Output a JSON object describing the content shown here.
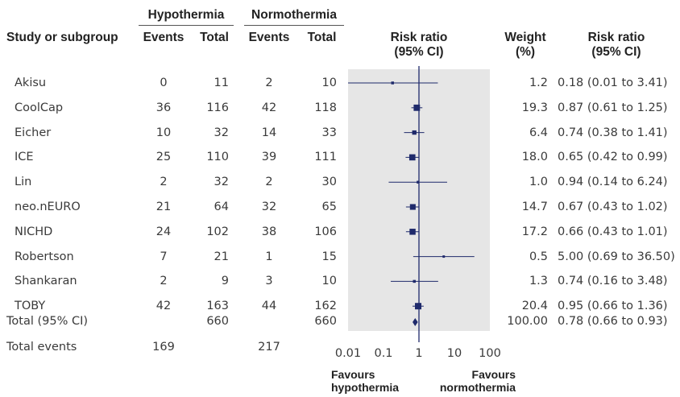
{
  "headers": {
    "group1": "Hypothermia",
    "group2": "Normothermia",
    "study": "Study or subgroup",
    "events1": "Events",
    "total1": "Total",
    "events2": "Events",
    "total2": "Total",
    "rr_plot_line1": "Risk ratio",
    "rr_plot_line2": "(95% CI)",
    "weight_line1": "Weight",
    "weight_line2": "(%)",
    "rr_text_line1": "Risk ratio",
    "rr_text_line2": "(95% CI)"
  },
  "rows": [
    {
      "study": "Akisu",
      "e1": "0",
      "t1": "11",
      "e2": "2",
      "t2": "10",
      "weight": "1.2",
      "ci_text": "0.18 (0.01 to 3.41)"
    },
    {
      "study": "CoolCap",
      "e1": "36",
      "t1": "116",
      "e2": "42",
      "t2": "118",
      "weight": "19.3",
      "ci_text": "0.87 (0.61 to 1.25)"
    },
    {
      "study": "Eicher",
      "e1": "10",
      "t1": "32",
      "e2": "14",
      "t2": "33",
      "weight": "6.4",
      "ci_text": "0.74 (0.38 to 1.41)"
    },
    {
      "study": "ICE",
      "e1": "25",
      "t1": "110",
      "e2": "39",
      "t2": "111",
      "weight": "18.0",
      "ci_text": "0.65 (0.42 to 0.99)"
    },
    {
      "study": "Lin",
      "e1": "2",
      "t1": "32",
      "e2": "2",
      "t2": "30",
      "weight": "1.0",
      "ci_text": "0.94 (0.14 to 6.24)"
    },
    {
      "study": "neo.nEURO",
      "e1": "21",
      "t1": "64",
      "e2": "32",
      "t2": "65",
      "weight": "14.7",
      "ci_text": "0.67 (0.43 to 1.02)"
    },
    {
      "study": "NICHD",
      "e1": "24",
      "t1": "102",
      "e2": "38",
      "t2": "106",
      "weight": "17.2",
      "ci_text": "0.66 (0.43 to 1.01)"
    },
    {
      "study": "Robertson",
      "e1": "7",
      "t1": "21",
      "e2": "1",
      "t2": "15",
      "weight": "0.5",
      "ci_text": "5.00 (0.69 to 36.50)"
    },
    {
      "study": "Shankaran",
      "e1": "2",
      "t1": "9",
      "e2": "3",
      "t2": "10",
      "weight": "1.3",
      "ci_text": "0.74 (0.16 to 3.48)"
    },
    {
      "study": "TOBY",
      "e1": "42",
      "t1": "163",
      "e2": "44",
      "t2": "162",
      "weight": "20.4",
      "ci_text": "0.95 (0.66 to 1.36)"
    }
  ],
  "total": {
    "label": "Total (95% CI)",
    "t1": "660",
    "t2": "660",
    "weight": "100.00",
    "ci_text": "0.78 (0.66 to 0.93)"
  },
  "events": {
    "label": "Total events",
    "e1": "169",
    "e2": "217"
  },
  "favours": {
    "left_line1": "Favours",
    "left_line2": "hypothermia",
    "right_line1": "Favours",
    "right_line2": "normothermia"
  },
  "colors": {
    "marker": "#1f2a6b",
    "panel": "#e6e6e6",
    "text": "#3a3a3a"
  },
  "chart_data": {
    "type": "forest",
    "x_scale": "log",
    "xlim": [
      0.01,
      100
    ],
    "x_ticks": [
      "0.01",
      "0.1",
      "1",
      "10",
      "100"
    ],
    "null_line": 1,
    "studies": [
      {
        "name": "Akisu",
        "rr": 0.18,
        "lo": 0.01,
        "hi": 3.41,
        "weight": 1.2
      },
      {
        "name": "CoolCap",
        "rr": 0.87,
        "lo": 0.61,
        "hi": 1.25,
        "weight": 19.3
      },
      {
        "name": "Eicher",
        "rr": 0.74,
        "lo": 0.38,
        "hi": 1.41,
        "weight": 6.4
      },
      {
        "name": "ICE",
        "rr": 0.65,
        "lo": 0.42,
        "hi": 0.99,
        "weight": 18.0
      },
      {
        "name": "Lin",
        "rr": 0.94,
        "lo": 0.14,
        "hi": 6.24,
        "weight": 1.0
      },
      {
        "name": "neo.nEURO",
        "rr": 0.67,
        "lo": 0.43,
        "hi": 1.02,
        "weight": 14.7
      },
      {
        "name": "NICHD",
        "rr": 0.66,
        "lo": 0.43,
        "hi": 1.01,
        "weight": 17.2
      },
      {
        "name": "Robertson",
        "rr": 5.0,
        "lo": 0.69,
        "hi": 36.5,
        "weight": 0.5
      },
      {
        "name": "Shankaran",
        "rr": 0.74,
        "lo": 0.16,
        "hi": 3.48,
        "weight": 1.3
      },
      {
        "name": "TOBY",
        "rr": 0.95,
        "lo": 0.66,
        "hi": 1.36,
        "weight": 20.4
      }
    ],
    "pooled": {
      "rr": 0.78,
      "lo": 0.66,
      "hi": 0.93
    }
  }
}
